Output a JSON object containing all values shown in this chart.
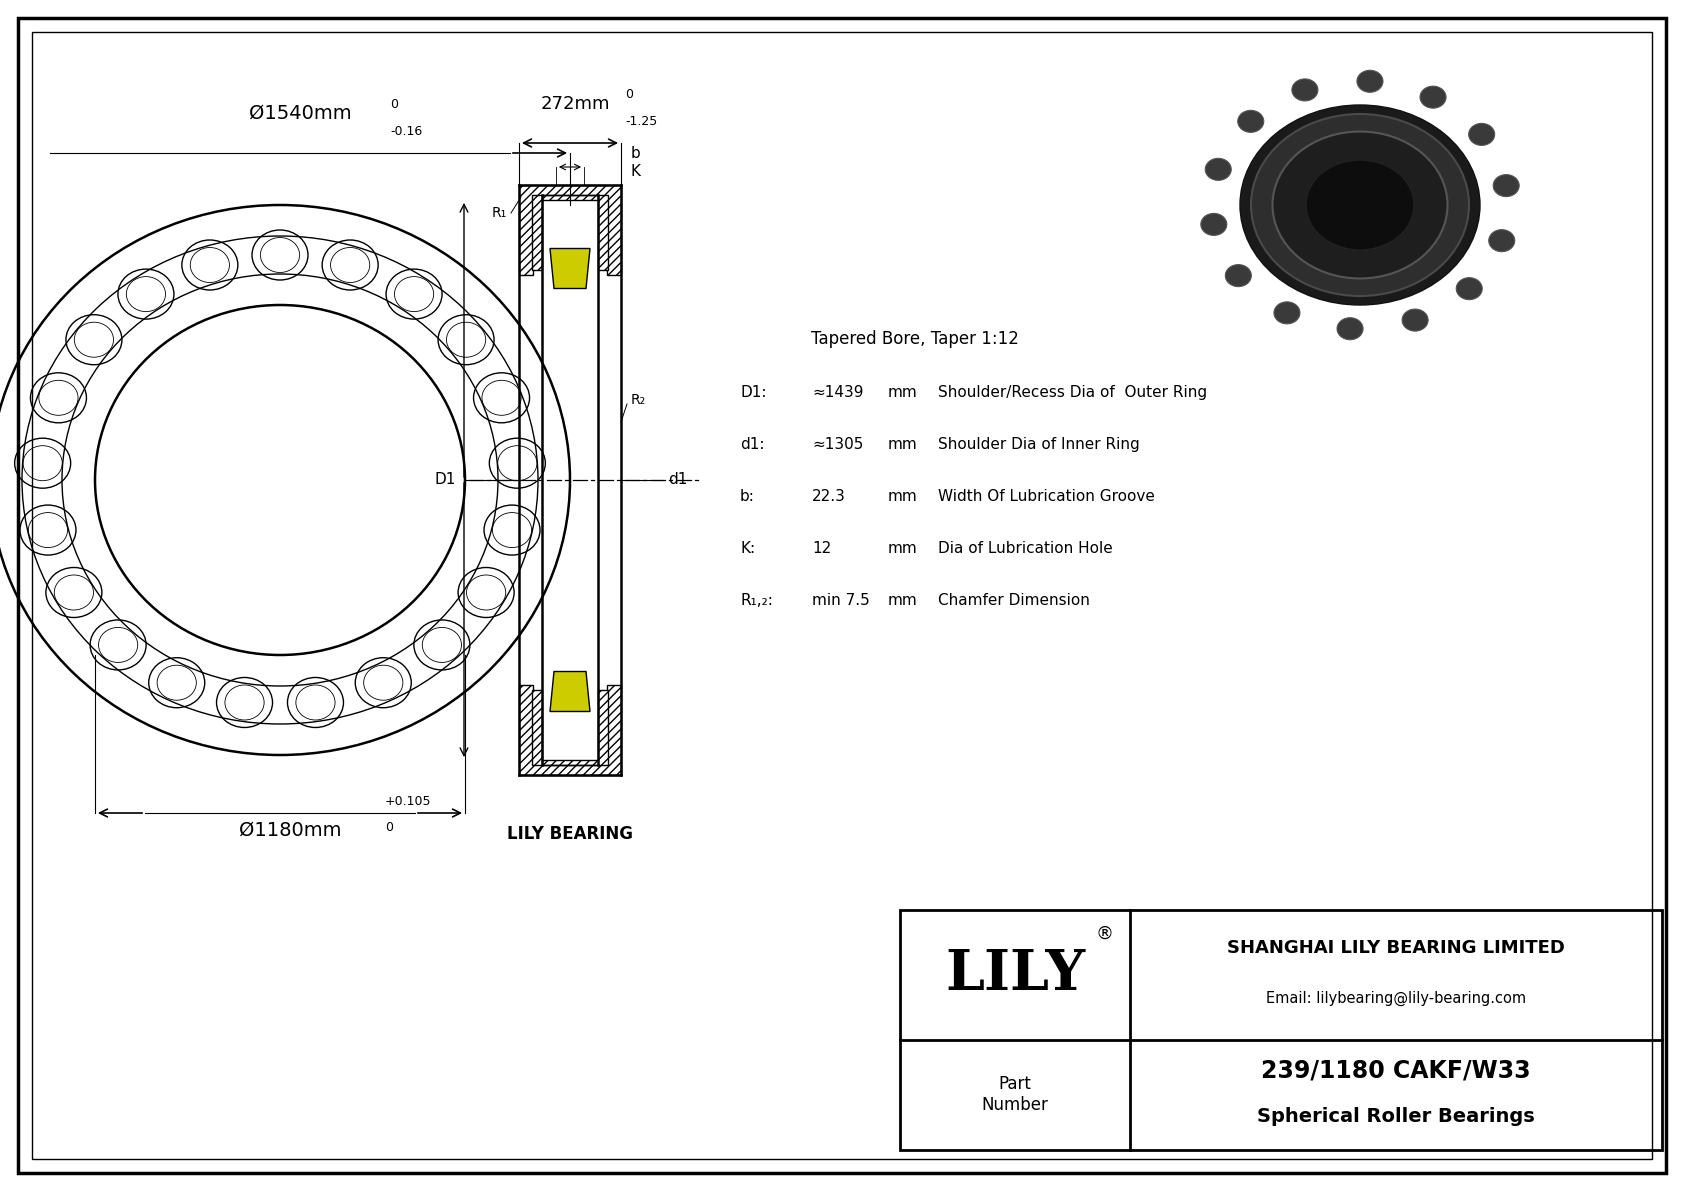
{
  "bg_color": "#ffffff",
  "outer_diameter_label": "Ø1540mm",
  "outer_tol_top": "0",
  "outer_tol_bot": "-0.16",
  "inner_diameter_label": "Ø1180mm",
  "inner_tol_top": "+0.105",
  "inner_tol_bot": "0",
  "width_label": "272mm",
  "width_tol_top": "0",
  "width_tol_bot": "-1.25",
  "specs_title": "Tapered Bore, Taper 1:12",
  "specs": [
    {
      "key": "D1:",
      "val1": "≈1439",
      "val2": "mm",
      "desc": "Shoulder/Recess Dia of  Outer Ring"
    },
    {
      "key": "d1:",
      "val1": "≈1305",
      "val2": "mm",
      "desc": "Shoulder Dia of Inner Ring"
    },
    {
      "key": "b:",
      "val1": "22.3",
      "val2": "mm",
      "desc": "Width Of Lubrication Groove"
    },
    {
      "key": "K:",
      "val1": "12",
      "val2": "mm",
      "desc": "Dia of Lubrication Hole"
    },
    {
      "key": "R₁,₂:",
      "val1": "min 7.5",
      "val2": "mm",
      "desc": "Chamfer Dimension"
    }
  ],
  "company": "SHANGHAI LILY BEARING LIMITED",
  "email": "Email: lilybearing@lily-bearing.com",
  "part_number": "239/1180 CAKF/W33",
  "bearing_type": "Spherical Roller Bearings",
  "cross_section_label": "LILY BEARING",
  "label_b": "b",
  "label_K": "K",
  "label_R1": "R₁",
  "label_R2": "R₂",
  "label_D1": "D1",
  "label_d1": "d1"
}
